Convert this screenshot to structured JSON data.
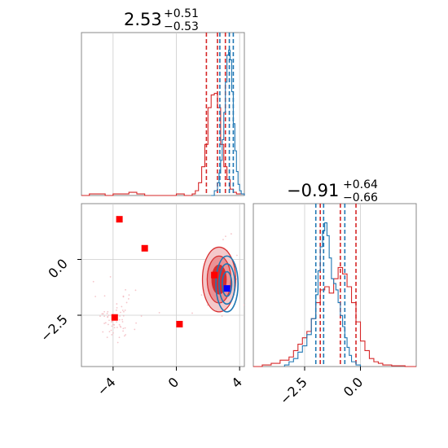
{
  "colors": {
    "red": "#d62728",
    "blue": "#1f77b4",
    "red_fill": "#e88a8b",
    "red_fill_dark": "#e02a2a",
    "grid": "#cccccc",
    "frame": "#888888"
  },
  "chart_data": {
    "type": "corner",
    "panels": [
      {
        "id": "hist-param1",
        "type": "histogram",
        "title": {
          "median": "2.53",
          "plus": "+0.51",
          "minus": "−0.53"
        },
        "xlim": [
          -6,
          4.3
        ],
        "grid_x": [
          -4,
          0,
          4
        ],
        "series": [
          {
            "name": "red",
            "color": "#d62728",
            "quantiles": [
              1.9,
              2.6,
              3.1
            ],
            "bins_x": [
              -6,
              -5.5,
              -5,
              -4.5,
              -4,
              -3.5,
              -3,
              -2.5,
              -2,
              -1.5,
              -1,
              -0.5,
              0,
              0.5,
              1,
              1.2,
              1.4,
              1.6,
              1.8,
              2.0,
              2.2,
              2.4,
              2.6,
              2.8,
              3.0,
              3.2,
              3.4,
              3.6,
              3.8,
              4.0,
              4.3
            ],
            "counts": [
              0,
              0.01,
              0.01,
              0,
              0.01,
              0.01,
              0.02,
              0.01,
              0,
              0,
              0,
              0,
              0.01,
              0,
              0.01,
              0.03,
              0.08,
              0.18,
              0.32,
              0.55,
              0.63,
              0.64,
              0.55,
              0.32,
              0.18,
              0.1,
              0.04,
              0.02,
              0.01,
              0.01
            ]
          },
          {
            "name": "blue",
            "color": "#1f77b4",
            "quantiles": [
              2.75,
              3.35,
              3.6
            ],
            "bins_x": [
              2.2,
              2.4,
              2.6,
              2.7,
              2.8,
              2.9,
              3.0,
              3.1,
              3.2,
              3.3,
              3.4,
              3.5,
              3.6,
              3.7,
              3.8,
              3.9,
              4.0,
              4.1,
              4.3
            ],
            "counts": [
              0.0,
              0.03,
              0.08,
              0.14,
              0.22,
              0.35,
              0.52,
              0.71,
              0.88,
              0.91,
              0.85,
              0.65,
              0.45,
              0.28,
              0.15,
              0.07,
              0.03,
              0.01
            ]
          }
        ]
      },
      {
        "id": "scatter-2d",
        "type": "scatter-contour",
        "xlim": [
          -6,
          4.3
        ],
        "ylim": [
          -4.8,
          2.5
        ],
        "xticks": [
          "−4",
          "0",
          "4"
        ],
        "xtick_values": [
          -4,
          0,
          4
        ],
        "yticks": [
          "0.0",
          "−2.5"
        ],
        "ytick_values": [
          0,
          -2.5
        ],
        "red_markers": [
          [
            -3.6,
            1.8
          ],
          [
            -2.0,
            0.5
          ],
          [
            -3.9,
            -2.6
          ],
          [
            0.2,
            -2.9
          ],
          [
            2.4,
            -0.7
          ]
        ],
        "blue_markers": [
          [
            3.2,
            -1.3
          ]
        ],
        "red_scatter_cloud_center": [
          -3.8,
          -2.6
        ],
        "red_contour_center": [
          2.7,
          -0.9
        ],
        "blue_contour_center": [
          3.2,
          -1.1
        ]
      },
      {
        "id": "hist-param2",
        "type": "histogram",
        "title": {
          "median": "−0.91",
          "plus": "+0.64",
          "minus": "−0.66"
        },
        "xlim": [
          -4.8,
          2.5
        ],
        "xticks": [
          "−2.5",
          "0.0"
        ],
        "xtick_values": [
          -2.5,
          0
        ],
        "grid_x": [
          -2.5,
          0
        ],
        "series": [
          {
            "name": "red",
            "color": "#d62728",
            "quantiles": [
              -1.8,
              -0.9,
              -0.2
            ],
            "bins_x": [
              -4.8,
              -4.4,
              -4.0,
              -3.6,
              -3.2,
              -3.0,
              -2.8,
              -2.6,
              -2.4,
              -2.2,
              -2.0,
              -1.8,
              -1.6,
              -1.4,
              -1.2,
              -1.0,
              -0.8,
              -0.6,
              -0.4,
              -0.2,
              0,
              0.2,
              0.4,
              0.6,
              0.8,
              1.0,
              1.4,
              2.0,
              2.5
            ],
            "counts": [
              0,
              0.01,
              0.02,
              0.04,
              0.06,
              0.1,
              0.14,
              0.18,
              0.22,
              0.3,
              0.4,
              0.48,
              0.5,
              0.46,
              0.55,
              0.62,
              0.58,
              0.5,
              0.4,
              0.28,
              0.16,
              0.1,
              0.05,
              0.03,
              0.02,
              0.01,
              0.005,
              0
            ]
          },
          {
            "name": "blue",
            "color": "#1f77b4",
            "quantiles": [
              -2.0,
              -1.65,
              -0.7
            ],
            "bins_x": [
              -3.4,
              -3.2,
              -3.0,
              -2.8,
              -2.6,
              -2.4,
              -2.2,
              -2.0,
              -1.9,
              -1.8,
              -1.7,
              -1.6,
              -1.5,
              -1.4,
              -1.3,
              -1.2,
              -1.1,
              -1.0,
              -0.9,
              -0.8,
              -0.7,
              -0.6,
              -0.5,
              -0.4,
              -0.2,
              0
            ],
            "counts": [
              0.01,
              0.03,
              0.05,
              0.09,
              0.13,
              0.2,
              0.3,
              0.45,
              0.6,
              0.75,
              0.85,
              0.9,
              0.82,
              0.68,
              0.55,
              0.52,
              0.48,
              0.4,
              0.32,
              0.25,
              0.18,
              0.12,
              0.07,
              0.03,
              0.01
            ]
          }
        ]
      }
    ]
  }
}
